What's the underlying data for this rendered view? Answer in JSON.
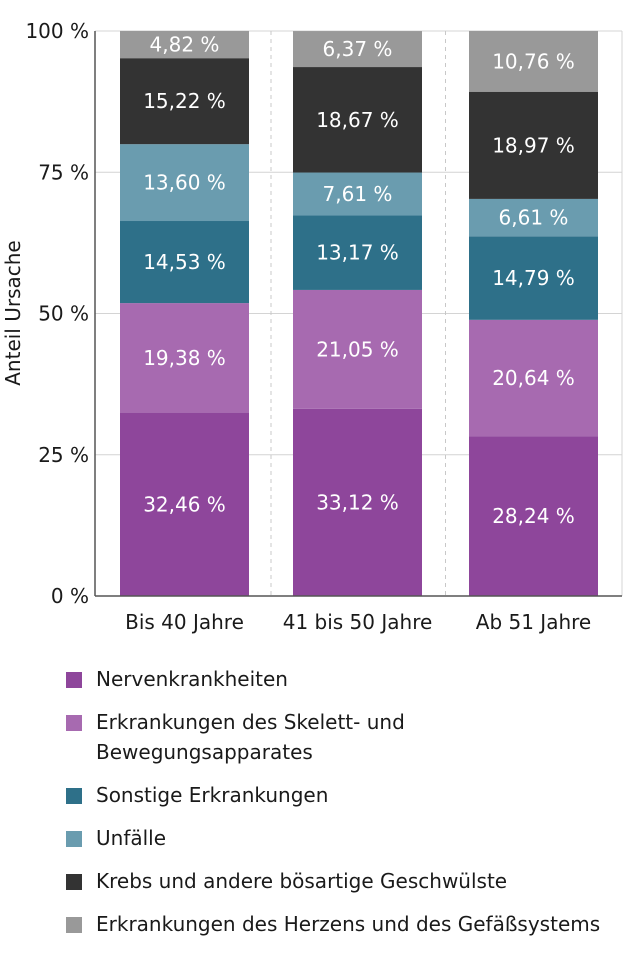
{
  "chart_data": {
    "type": "bar",
    "stacked": true,
    "title": "",
    "xlabel": "",
    "ylabel": "Anteil Ursache",
    "ylim": [
      0,
      100
    ],
    "yticks": [
      0,
      25,
      50,
      75,
      100
    ],
    "ytick_labels": [
      "0 %",
      "25 %",
      "50 %",
      "75 %",
      "100 %"
    ],
    "grid": true,
    "legend_position": "bottom",
    "categories": [
      "Bis 40 Jahre",
      "41 bis 50 Jahre",
      "Ab 51 Jahre"
    ],
    "series": [
      {
        "name": "Nervenkrankheiten",
        "color": "#8e469b",
        "values": [
          32.46,
          33.12,
          28.24
        ],
        "labels": [
          "32,46 %",
          "33,12 %",
          "28,24 %"
        ]
      },
      {
        "name": "Erkrankungen des Skelett- und Bewegungsapparates",
        "color": "#a76ab0",
        "values": [
          19.38,
          21.05,
          20.64
        ],
        "labels": [
          "19,38 %",
          "21,05 %",
          "20,64 %"
        ]
      },
      {
        "name": "Sonstige Erkrankungen",
        "color": "#2e7089",
        "values": [
          14.53,
          13.17,
          14.79
        ],
        "labels": [
          "14,53 %",
          "13,17 %",
          "14,79 %"
        ]
      },
      {
        "name": "Unfälle",
        "color": "#6a9caf",
        "values": [
          13.6,
          7.61,
          6.61
        ],
        "labels": [
          "13,60 %",
          "7,61 %",
          "6,61 %"
        ]
      },
      {
        "name": "Krebs und andere bösartige Geschwülste",
        "color": "#333333",
        "values": [
          15.22,
          18.67,
          18.97
        ],
        "labels": [
          "15,22 %",
          "18,67 %",
          "18,97 %"
        ]
      },
      {
        "name": "Erkrankungen des Herzens und des Gefäßsystems",
        "color": "#999999",
        "values": [
          4.82,
          6.37,
          10.76
        ],
        "labels": [
          "4,82 %",
          "6,37 %",
          "10,76 %"
        ]
      }
    ]
  },
  "legend": {
    "items": [
      {
        "label": "Nervenkrankheiten",
        "color": "#8e469b"
      },
      {
        "label": "Erkrankungen des Skelett- und Bewegungsapparates",
        "color": "#a76ab0"
      },
      {
        "label": "Sonstige Erkrankungen",
        "color": "#2e7089"
      },
      {
        "label": "Unfälle",
        "color": "#6a9caf"
      },
      {
        "label": "Krebs und andere bösartige Geschwülste",
        "color": "#333333"
      },
      {
        "label": "Erkrankungen des Herzens und des Gefäßsystems",
        "color": "#999999"
      }
    ]
  }
}
